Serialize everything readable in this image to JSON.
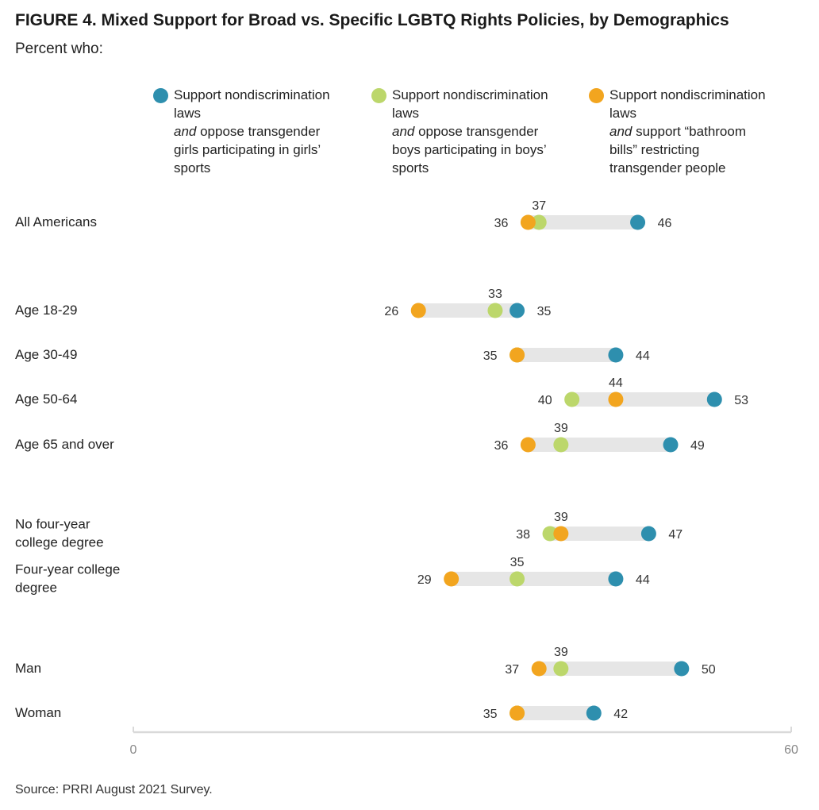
{
  "title": "FIGURE 4.  Mixed Support for Broad vs. Specific LGBTQ Rights Policies, by Demographics",
  "subtitle": "Percent who:",
  "source": "Source: PRRI August 2021 Survey.",
  "legend": [
    {
      "prefix": "Support nondiscrimination laws",
      "emph": "and",
      "suffix": " oppose transgender girls participating in girls’ sports",
      "color": "#2e8fae"
    },
    {
      "prefix": "Support nondiscrimination laws",
      "emph": "and",
      "suffix": " oppose transgender boys participating in boys’ sports",
      "color": "#bcd76b"
    },
    {
      "prefix": "Support nondiscrimination laws",
      "emph": "and",
      "suffix": " support “bathroom bills” restricting transgender people",
      "color": "#f2a51f"
    }
  ],
  "chart_data": {
    "type": "dot-range",
    "xlim": [
      0,
      60
    ],
    "ticks": [
      "0",
      "60"
    ],
    "series": [
      {
        "name": "Support nondiscrimination laws and oppose transgender girls participating in girls’ sports",
        "color": "#2e8fae"
      },
      {
        "name": "Support nondiscrimination laws and oppose transgender boys participating in boys’ sports",
        "color": "#bcd76b"
      },
      {
        "name": "Support nondiscrimination laws and support “bathroom bills” restricting transgender people",
        "color": "#f2a51f"
      }
    ],
    "rows": [
      {
        "label": [
          "All Americans"
        ],
        "values": [
          46,
          37,
          36
        ]
      },
      {
        "label": [
          "Age 18-29"
        ],
        "values": [
          35,
          33,
          26
        ]
      },
      {
        "label": [
          "Age 30-49"
        ],
        "values": [
          44,
          35,
          35
        ]
      },
      {
        "label": [
          "Age 50-64"
        ],
        "values": [
          53,
          40,
          44
        ]
      },
      {
        "label": [
          "Age 65 and over"
        ],
        "values": [
          49,
          39,
          36
        ]
      },
      {
        "label": [
          "No four-year",
          "college degree"
        ],
        "values": [
          47,
          38,
          39
        ]
      },
      {
        "label": [
          "Four-year college",
          "degree"
        ],
        "values": [
          44,
          35,
          29
        ]
      },
      {
        "label": [
          "Man"
        ],
        "values": [
          50,
          39,
          37
        ]
      },
      {
        "label": [
          "Woman"
        ],
        "values": [
          42,
          35,
          35
        ]
      }
    ],
    "value_labels": [
      {
        "above": "37",
        "left": "36",
        "right": "46"
      },
      {
        "above": "33",
        "left": "26",
        "right": "35"
      },
      {
        "above": "",
        "left": "35",
        "right": "44"
      },
      {
        "above": "44",
        "left": "40",
        "right": "53"
      },
      {
        "above": "39",
        "left": "36",
        "right": "49"
      },
      {
        "above": "39",
        "left": "38",
        "right": "47"
      },
      {
        "above": "35",
        "left": "29",
        "right": "44"
      },
      {
        "above": "39",
        "left": "37",
        "right": "50"
      },
      {
        "above": "",
        "left": "35",
        "right": "42"
      }
    ]
  }
}
